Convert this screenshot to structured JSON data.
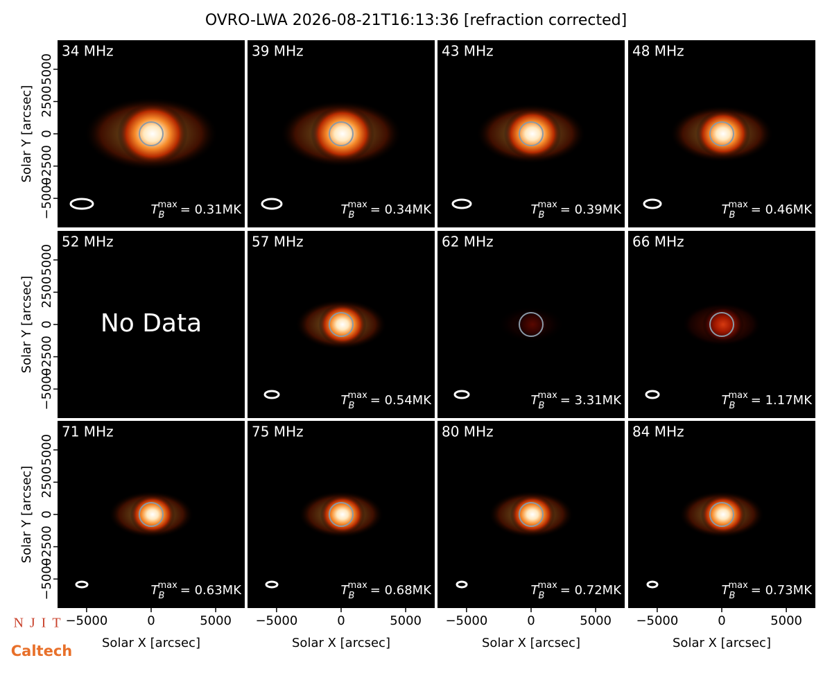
{
  "title": "OVRO-LWA 2026-08-21T16:13:36 [refraction corrected]",
  "logos": [
    "NJIT",
    "Caltech"
  ],
  "chart_data": [
    {
      "type": "image",
      "label": "34 MHz",
      "annotation": {
        "base": "T",
        "sub": "B",
        "sup": "max",
        "text": "= 0.31MK"
      },
      "xlim": [
        -7250,
        7250
      ],
      "ylim": [
        -7250,
        7250
      ],
      "ylabel": "Solar Y [arcsec]",
      "yticks": [
        {
          "value": -5000,
          "label": "−5000"
        },
        {
          "value": -2500,
          "label": "−2500"
        },
        0,
        2500,
        5000
      ]
    },
    {
      "type": "image",
      "label": "39 MHz",
      "annotation": {
        "base": "T",
        "sub": "B",
        "sup": "max",
        "text": "= 0.34MK"
      },
      "xlim": [
        -7250,
        7250
      ],
      "ylim": [
        -7250,
        7250
      ]
    },
    {
      "type": "image",
      "label": "43 MHz",
      "annotation": {
        "base": "T",
        "sub": "B",
        "sup": "max",
        "text": "= 0.39MK"
      },
      "xlim": [
        -7250,
        7250
      ],
      "ylim": [
        -7250,
        7250
      ]
    },
    {
      "type": "image",
      "label": "48 MHz",
      "annotation": {
        "base": "T",
        "sub": "B",
        "sup": "max",
        "text": "= 0.46MK"
      },
      "xlim": [
        -7250,
        7250
      ],
      "ylim": [
        -7250,
        7250
      ]
    },
    {
      "type": "image",
      "label": "52 MHz",
      "note": "No Data",
      "xlim": [
        -7250,
        7250
      ],
      "ylim": [
        -7250,
        7250
      ],
      "ylabel": "Solar Y [arcsec]",
      "yticks": [
        {
          "value": -5000,
          "label": "−5000"
        },
        {
          "value": -2500,
          "label": "−2500"
        },
        0,
        2500,
        5000
      ]
    },
    {
      "type": "image",
      "label": "57 MHz",
      "annotation": {
        "base": "T",
        "sub": "B",
        "sup": "max",
        "text": "= 0.54MK"
      },
      "xlim": [
        -7250,
        7250
      ],
      "ylim": [
        -7250,
        7250
      ]
    },
    {
      "type": "image",
      "label": "62 MHz",
      "annotation": {
        "base": "T",
        "sub": "B",
        "sup": "max",
        "text": "= 3.31MK"
      },
      "xlim": [
        -7250,
        7250
      ],
      "ylim": [
        -7250,
        7250
      ]
    },
    {
      "type": "image",
      "label": "66 MHz",
      "annotation": {
        "base": "T",
        "sub": "B",
        "sup": "max",
        "text": "= 1.17MK"
      },
      "xlim": [
        -7250,
        7250
      ],
      "ylim": [
        -7250,
        7250
      ]
    },
    {
      "type": "image",
      "label": "71 MHz",
      "annotation": {
        "base": "T",
        "sub": "B",
        "sup": "max",
        "text": "= 0.63MK"
      },
      "xlim": [
        -7250,
        7250
      ],
      "ylim": [
        -7250,
        7250
      ],
      "ylabel": "Solar Y [arcsec]",
      "yticks": [
        {
          "value": -5000,
          "label": "−5000"
        },
        {
          "value": -2500,
          "label": "−2500"
        },
        0,
        2500,
        5000
      ],
      "xlabel": "Solar X [arcsec]",
      "xticks": [
        {
          "value": -5000,
          "label": "−5000"
        },
        0,
        5000
      ]
    },
    {
      "type": "image",
      "label": "75 MHz",
      "annotation": {
        "base": "T",
        "sub": "B",
        "sup": "max",
        "text": "= 0.68MK"
      },
      "xlim": [
        -7250,
        7250
      ],
      "ylim": [
        -7250,
        7250
      ],
      "xlabel": "Solar X [arcsec]",
      "xticks": [
        {
          "value": -5000,
          "label": "−5000"
        },
        0,
        5000
      ]
    },
    {
      "type": "image",
      "label": "80 MHz",
      "annotation": {
        "base": "T",
        "sub": "B",
        "sup": "max",
        "text": "= 0.72MK"
      },
      "xlim": [
        -7250,
        7250
      ],
      "ylim": [
        -7250,
        7250
      ],
      "xlabel": "Solar X [arcsec]",
      "xticks": [
        {
          "value": -5000,
          "label": "−5000"
        },
        0,
        5000
      ]
    },
    {
      "type": "image",
      "label": "84 MHz",
      "annotation": {
        "base": "T",
        "sub": "B",
        "sup": "max",
        "text": "= 0.73MK"
      },
      "xlim": [
        -7250,
        7250
      ],
      "ylim": [
        -7250,
        7250
      ],
      "xlabel": "Solar X [arcsec]",
      "xticks": [
        {
          "value": -5000,
          "label": "−5000"
        },
        0,
        5000
      ]
    }
  ]
}
